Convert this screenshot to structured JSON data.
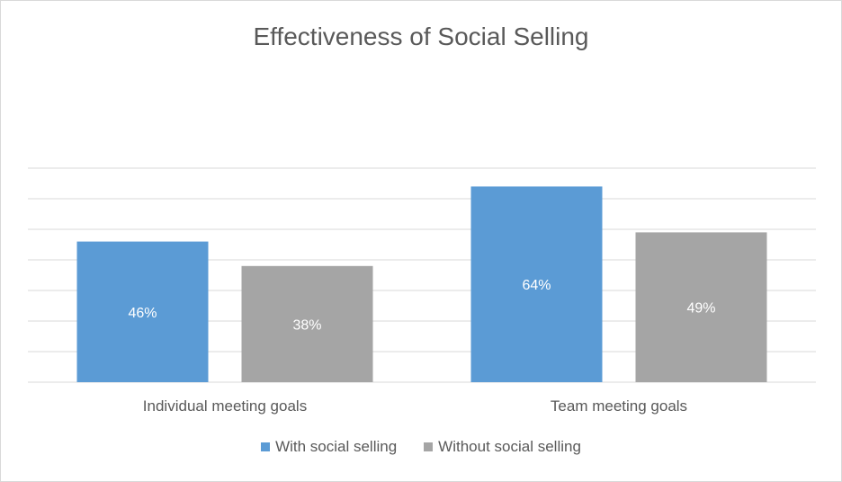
{
  "chart_data": {
    "type": "bar",
    "title": "Effectiveness of Social Selling",
    "categories": [
      "Individual meeting goals",
      "Team meeting goals"
    ],
    "series": [
      {
        "name": "With social selling",
        "values": [
          46,
          64
        ],
        "labels": [
          "46%",
          "64%"
        ],
        "color": "#5b9bd5"
      },
      {
        "name": "Without social selling",
        "values": [
          38,
          49
        ],
        "labels": [
          "38%",
          "49%"
        ],
        "color": "#a5a5a5"
      }
    ],
    "ylim": [
      0,
      70
    ],
    "grid": true,
    "legend": "bottom"
  }
}
